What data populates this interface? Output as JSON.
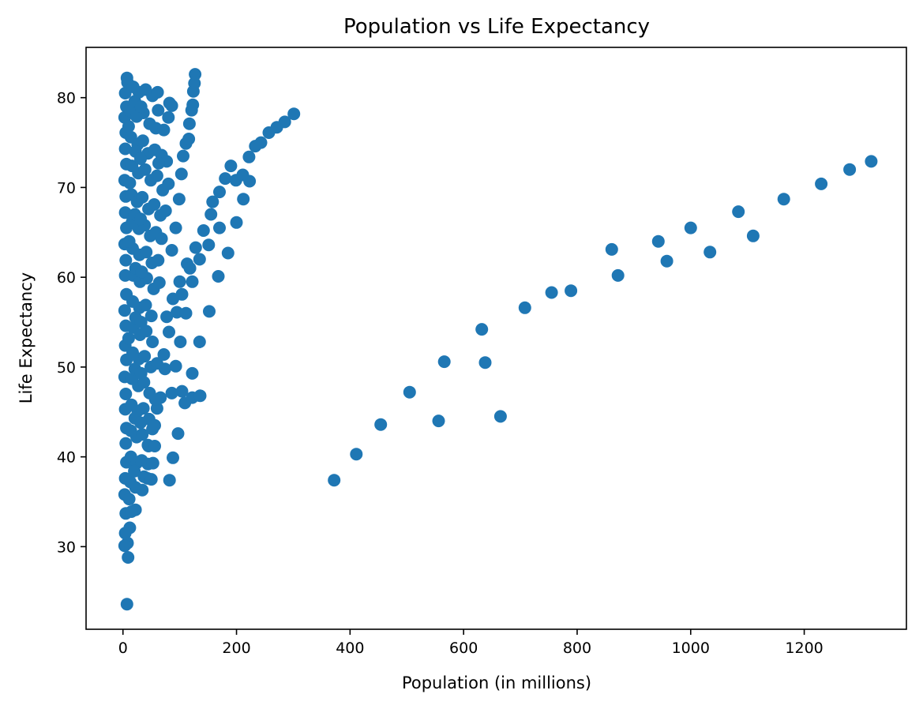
{
  "chart_data": {
    "type": "scatter",
    "title": "Population vs Life Expectancy",
    "xlabel": "Population (in millions)",
    "ylabel": "Life Expectancy",
    "xlim": [
      -65,
      1380
    ],
    "ylim": [
      20.8,
      85.6
    ],
    "xticks": [
      0,
      200,
      400,
      600,
      800,
      1000,
      1200
    ],
    "yticks": [
      30,
      40,
      50,
      60,
      70,
      80
    ],
    "grid": false,
    "legend": "none",
    "marker_color": "#1f77b4",
    "series": [
      {
        "points": [
          [
            372,
            37.4
          ],
          [
            411,
            40.3
          ],
          [
            454,
            43.6
          ],
          [
            505,
            47.2
          ],
          [
            556,
            44.0
          ],
          [
            566,
            50.6
          ],
          [
            632,
            54.2
          ],
          [
            638,
            50.5
          ],
          [
            665,
            44.5
          ],
          [
            708,
            56.6
          ],
          [
            755,
            58.3
          ],
          [
            789,
            58.5
          ],
          [
            861,
            63.1
          ],
          [
            872,
            60.2
          ],
          [
            943,
            64.0
          ],
          [
            958,
            61.8
          ],
          [
            1000,
            65.5
          ],
          [
            1034,
            62.8
          ],
          [
            1084,
            67.3
          ],
          [
            1110,
            64.6
          ],
          [
            1164,
            68.7
          ],
          [
            1230,
            70.4
          ],
          [
            1280,
            72.0
          ],
          [
            1318,
            72.9
          ],
          [
            86,
            63.0
          ],
          [
            88,
            57.6
          ],
          [
            93,
            65.5
          ],
          [
            99,
            68.7
          ],
          [
            103,
            71.5
          ],
          [
            106,
            73.5
          ],
          [
            111,
            74.9
          ],
          [
            116,
            75.4
          ],
          [
            117,
            77.1
          ],
          [
            121,
            78.6
          ],
          [
            123,
            79.2
          ],
          [
            124,
            80.7
          ],
          [
            126,
            81.6
          ],
          [
            127,
            82.6
          ],
          [
            95,
            56.1
          ],
          [
            100,
            59.5
          ],
          [
            104,
            58.1
          ],
          [
            113,
            61.5
          ],
          [
            118,
            61.0
          ],
          [
            122,
            59.5
          ],
          [
            128,
            63.3
          ],
          [
            135,
            62.0
          ],
          [
            142,
            65.2
          ],
          [
            151,
            63.6
          ],
          [
            155,
            67.0
          ],
          [
            158,
            68.4
          ],
          [
            170,
            69.5
          ],
          [
            180,
            71.0
          ],
          [
            190,
            72.4
          ],
          [
            199,
            70.8
          ],
          [
            211,
            71.4
          ],
          [
            222,
            73.4
          ],
          [
            233,
            74.6
          ],
          [
            243,
            75.0
          ],
          [
            257,
            76.1
          ],
          [
            271,
            76.7
          ],
          [
            285,
            77.3
          ],
          [
            301,
            78.2
          ],
          [
            93,
            50.1
          ],
          [
            101,
            52.8
          ],
          [
            111,
            56.0
          ],
          [
            122,
            49.3
          ],
          [
            135,
            52.8
          ],
          [
            152,
            56.2
          ],
          [
            168,
            60.1
          ],
          [
            185,
            62.7
          ],
          [
            200,
            66.1
          ],
          [
            212,
            68.7
          ],
          [
            223,
            70.7
          ],
          [
            170,
            65.5
          ],
          [
            88,
            39.9
          ],
          [
            97,
            42.6
          ],
          [
            82,
            37.4
          ],
          [
            109,
            46.0
          ],
          [
            122,
            46.6
          ],
          [
            136,
            46.8
          ],
          [
            104,
            47.3
          ],
          [
            86,
            47.1
          ],
          [
            77,
            55.6
          ],
          [
            81,
            53.9
          ],
          [
            72,
            51.4
          ],
          [
            74,
            49.8
          ],
          [
            66,
            46.6
          ],
          [
            60,
            45.4
          ],
          [
            52,
            43.1
          ],
          [
            45,
            41.2
          ],
          [
            37,
            37.8
          ],
          [
            34,
            36.3
          ],
          [
            22,
            34.1
          ],
          [
            12,
            32.1
          ],
          [
            8,
            30.4
          ],
          [
            9,
            28.8
          ],
          [
            7,
            23.6
          ],
          [
            3,
            30.1
          ],
          [
            4,
            31.5
          ],
          [
            5,
            33.7
          ],
          [
            3,
            35.8
          ],
          [
            4,
            37.6
          ],
          [
            6,
            39.4
          ],
          [
            5,
            41.5
          ],
          [
            6,
            43.2
          ],
          [
            4,
            45.3
          ],
          [
            5,
            47.0
          ],
          [
            3,
            48.9
          ],
          [
            6,
            50.8
          ],
          [
            4,
            52.4
          ],
          [
            5,
            54.6
          ],
          [
            3,
            56.3
          ],
          [
            6,
            58.1
          ],
          [
            4,
            60.2
          ],
          [
            5,
            61.9
          ],
          [
            3,
            63.7
          ],
          [
            6,
            65.5
          ],
          [
            4,
            67.2
          ],
          [
            5,
            69.0
          ],
          [
            3,
            70.8
          ],
          [
            6,
            72.6
          ],
          [
            4,
            74.3
          ],
          [
            5,
            76.1
          ],
          [
            3,
            77.8
          ],
          [
            6,
            79.0
          ],
          [
            4,
            80.5
          ],
          [
            8,
            81.7
          ],
          [
            7,
            82.2
          ],
          [
            18,
            81.2
          ],
          [
            28,
            80.6
          ],
          [
            40,
            80.9
          ],
          [
            52,
            80.2
          ],
          [
            61,
            80.6
          ],
          [
            82,
            79.4
          ],
          [
            13,
            78.5
          ],
          [
            24,
            77.9
          ],
          [
            36,
            78.3
          ],
          [
            47,
            77.1
          ],
          [
            58,
            76.6
          ],
          [
            72,
            76.4
          ],
          [
            80,
            77.8
          ],
          [
            14,
            75.6
          ],
          [
            26,
            74.8
          ],
          [
            35,
            75.2
          ],
          [
            44,
            73.8
          ],
          [
            56,
            74.2
          ],
          [
            68,
            73.6
          ],
          [
            77,
            72.9
          ],
          [
            16,
            72.4
          ],
          [
            27,
            71.6
          ],
          [
            39,
            72.0
          ],
          [
            49,
            70.8
          ],
          [
            60,
            71.3
          ],
          [
            70,
            69.7
          ],
          [
            80,
            70.4
          ],
          [
            15,
            69.2
          ],
          [
            25,
            68.4
          ],
          [
            34,
            68.9
          ],
          [
            45,
            67.6
          ],
          [
            55,
            68.1
          ],
          [
            66,
            66.9
          ],
          [
            75,
            67.4
          ],
          [
            16,
            66.1
          ],
          [
            28,
            65.4
          ],
          [
            38,
            65.8
          ],
          [
            48,
            64.6
          ],
          [
            58,
            65.0
          ],
          [
            68,
            64.3
          ],
          [
            17,
            63.2
          ],
          [
            29,
            62.5
          ],
          [
            41,
            62.8
          ],
          [
            51,
            61.6
          ],
          [
            62,
            61.9
          ],
          [
            18,
            60.2
          ],
          [
            30,
            59.5
          ],
          [
            42,
            59.9
          ],
          [
            54,
            58.7
          ],
          [
            64,
            59.4
          ],
          [
            17,
            57.3
          ],
          [
            29,
            56.6
          ],
          [
            40,
            56.9
          ],
          [
            50,
            55.7
          ],
          [
            18,
            54.4
          ],
          [
            30,
            53.6
          ],
          [
            41,
            54.0
          ],
          [
            52,
            52.8
          ],
          [
            17,
            51.6
          ],
          [
            28,
            50.9
          ],
          [
            38,
            51.2
          ],
          [
            49,
            50.0
          ],
          [
            60,
            50.4
          ],
          [
            16,
            48.7
          ],
          [
            27,
            47.9
          ],
          [
            37,
            48.3
          ],
          [
            47,
            47.1
          ],
          [
            57,
            46.4
          ],
          [
            15,
            45.8
          ],
          [
            26,
            45.1
          ],
          [
            36,
            45.4
          ],
          [
            46,
            44.2
          ],
          [
            56,
            43.5
          ],
          [
            14,
            42.9
          ],
          [
            24,
            42.2
          ],
          [
            34,
            42.5
          ],
          [
            44,
            41.3
          ],
          [
            14,
            40.0
          ],
          [
            24,
            39.3
          ],
          [
            33,
            39.6
          ],
          [
            44,
            39.2
          ],
          [
            53,
            39.3
          ],
          [
            56,
            41.2
          ],
          [
            13,
            37.2
          ],
          [
            22,
            36.6
          ],
          [
            43,
            37.6
          ],
          [
            50,
            37.5
          ],
          [
            11,
            35.3
          ],
          [
            15,
            33.9
          ],
          [
            10,
            53.2
          ],
          [
            11,
            64.0
          ],
          [
            12,
            70.5
          ],
          [
            10,
            76.8
          ],
          [
            21,
            79.6
          ],
          [
            32,
            79.0
          ],
          [
            62,
            78.6
          ],
          [
            86,
            79.1
          ],
          [
            22,
            74.0
          ],
          [
            31,
            73.2
          ],
          [
            63,
            72.7
          ],
          [
            21,
            67.0
          ],
          [
            31,
            66.5
          ],
          [
            22,
            61.0
          ],
          [
            33,
            60.6
          ],
          [
            22,
            55.5
          ],
          [
            32,
            55.0
          ],
          [
            21,
            49.8
          ],
          [
            32,
            49.3
          ],
          [
            21,
            44.3
          ],
          [
            31,
            43.8
          ],
          [
            20,
            38.4
          ]
        ]
      }
    ]
  }
}
